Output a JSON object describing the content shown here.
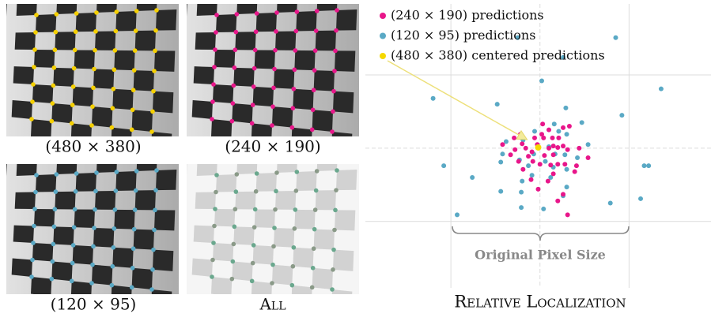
{
  "panels": [
    {
      "caption": "(480 × 380)"
    },
    {
      "caption": "(240 × 190)"
    },
    {
      "caption": "(120 × 95)"
    },
    {
      "caption": "All"
    }
  ],
  "chart_data": {
    "type": "scatter",
    "title": "Relative Localization",
    "annotation": "Original Pixel Size",
    "xlim": [
      -1.96,
      1.92
    ],
    "ylim": [
      -1.1,
      1.97
    ],
    "xticks": [
      -1,
      0,
      1
    ],
    "yticks": [
      -1,
      0,
      1
    ],
    "grid": true,
    "legend": "upper left",
    "series": [
      {
        "name": "(240 × 190) predictions",
        "color": "#e8168a",
        "x": [
          0.03,
          0.1,
          -0.22,
          -0.06,
          0.04,
          0.14,
          0.26,
          0.33,
          -0.2,
          -0.42,
          -0.28,
          -0.33,
          -0.16,
          -0.09,
          -0.03,
          0.1,
          0.15,
          0.2,
          0.26,
          0.31,
          0.05,
          0.15,
          -0.13,
          -0.24,
          -0.08,
          0,
          -0.19,
          0.12,
          0.2,
          0.28,
          0.41,
          0.44,
          0.54,
          0.39,
          0.15,
          0.09,
          -0.02,
          0.26,
          0.2,
          0.31,
          -0.1,
          -0.29,
          0.02,
          0.21
        ],
        "y": [
          0.33,
          0.25,
          0.19,
          0.14,
          0.14,
          0.14,
          0.28,
          0.3,
          0.06,
          0.05,
          -0.02,
          -0.09,
          0,
          -0.05,
          0.05,
          0,
          0.03,
          0.01,
          0.03,
          -0.02,
          -0.1,
          -0.09,
          -0.11,
          -0.18,
          -0.18,
          -0.22,
          -0.29,
          -0.23,
          -0.22,
          -0.22,
          -0.24,
          0,
          -0.13,
          -0.32,
          -0.35,
          -0.45,
          -0.56,
          -0.63,
          -0.72,
          -0.91,
          -0.43,
          0.14,
          0.19,
          0.14
        ]
      },
      {
        "name": "(120 × 95) predictions",
        "color": "#5aa9c5",
        "x": [
          -0.25,
          0.85,
          0.26,
          0.02,
          -1.2,
          1.36,
          -0.48,
          0.29,
          0.92,
          0.47,
          0.16,
          -0.06,
          0.21,
          0.3,
          0.54,
          -0.38,
          -0.42,
          -0.44,
          -0.23,
          -0.13,
          0.06,
          0.28,
          0.17,
          -0.19,
          0.3,
          -1.08,
          -0.76,
          0.12,
          1.17,
          1.22,
          -0.09,
          -0.44,
          0.3,
          0.26,
          -0.21,
          1.13,
          0.79,
          -0.21,
          0.04,
          -0.93,
          0.15,
          0.1,
          -0.07,
          -0.2,
          0.42
        ],
        "y": [
          1.51,
          1.51,
          1.24,
          0.92,
          0.68,
          0.81,
          0.6,
          0.55,
          0.45,
          0.35,
          0.33,
          0.23,
          0.23,
          0.19,
          0.05,
          0.09,
          -0.08,
          -0.19,
          -0.16,
          -0.24,
          -0.18,
          -0.09,
          -0.08,
          0.11,
          -0.29,
          -0.24,
          -0.4,
          -0.4,
          -0.24,
          -0.24,
          -0.37,
          -0.59,
          -0.53,
          -0.65,
          -0.6,
          -0.69,
          -0.75,
          -0.81,
          -0.83,
          -0.91,
          -0.26,
          0.02,
          -0.08,
          -0.45,
          -0.13
        ]
      },
      {
        "name": "(480 × 380) centered predictions",
        "color": "#f5d800",
        "x": [
          -0.02
        ],
        "y": [
          0.01
        ]
      }
    ]
  }
}
